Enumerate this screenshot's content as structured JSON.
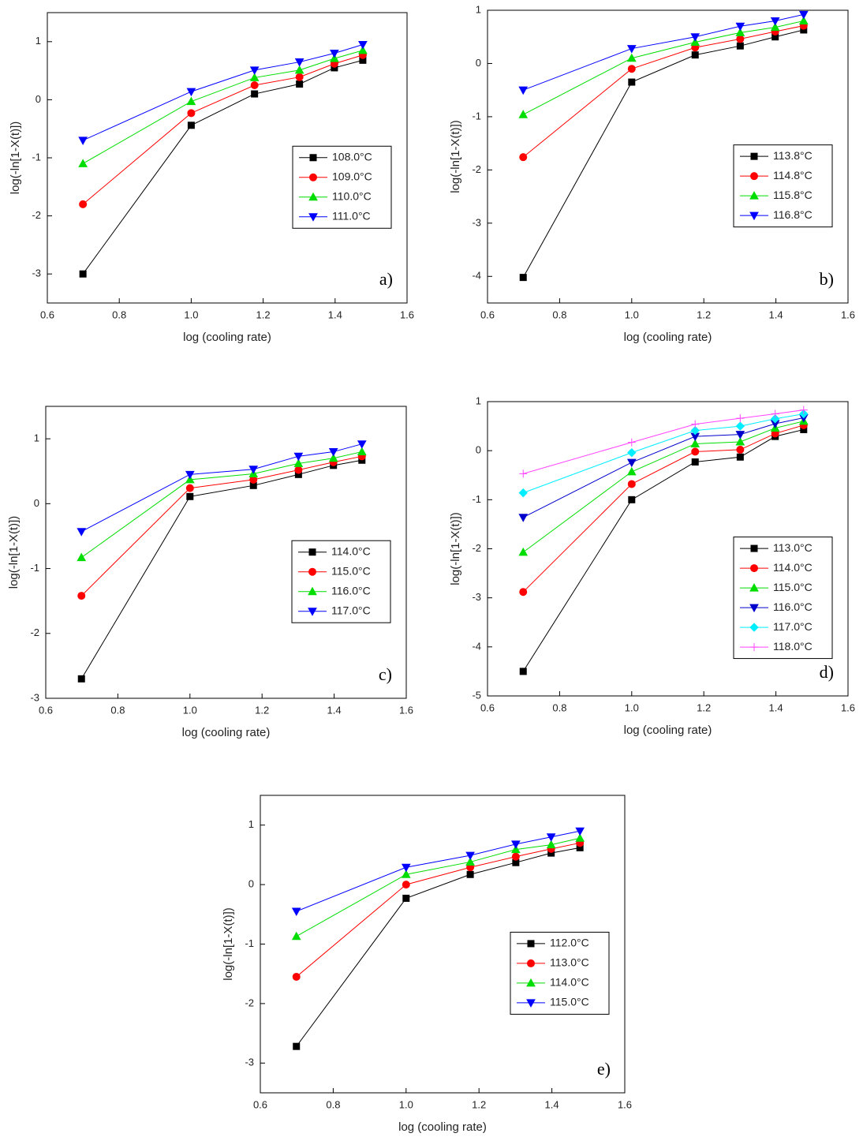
{
  "chart_data": [
    {
      "type": "line",
      "panel_label": "a)",
      "x_label": "log (cooling rate)",
      "y_label": "log(-ln[1-X(t)])",
      "x": [
        0.699,
        1.0,
        1.176,
        1.301,
        1.398,
        1.477
      ],
      "xlim": [
        0.6,
        1.6
      ],
      "xticks": [
        0.6,
        0.8,
        {
          "value": 1,
          "label": "1.0"
        },
        1.2,
        1.4,
        1.6
      ],
      "ylim": [
        -3.5,
        1.5
      ],
      "yticks": [
        -3,
        -2,
        -1,
        0,
        1
      ],
      "legend": "center right",
      "series": [
        {
          "name": "108.0°C",
          "color": "#000000",
          "marker": "square",
          "values": [
            -3.0,
            -0.44,
            0.1,
            0.27,
            0.55,
            0.68
          ]
        },
        {
          "name": "109.0°C",
          "color": "#ff0000",
          "marker": "circle",
          "values": [
            -1.8,
            -0.23,
            0.25,
            0.39,
            0.62,
            0.77
          ]
        },
        {
          "name": "110.0°C",
          "color": "#00dd00",
          "marker": "triangle-up",
          "values": [
            -1.1,
            -0.03,
            0.38,
            0.51,
            0.71,
            0.85
          ]
        },
        {
          "name": "111.0°C",
          "color": "#0000ff",
          "marker": "triangle-down",
          "values": [
            -0.7,
            0.14,
            0.51,
            0.65,
            0.8,
            0.95
          ]
        }
      ]
    },
    {
      "type": "line",
      "panel_label": "b)",
      "x_label": "log (cooling rate)",
      "y_label": "log(-ln[1-X(t)])",
      "x": [
        0.699,
        1.0,
        1.176,
        1.301,
        1.398,
        1.477
      ],
      "xlim": [
        0.6,
        1.6
      ],
      "xticks": [
        0.6,
        0.8,
        {
          "value": 1,
          "label": "1.0"
        },
        1.2,
        1.4,
        1.6
      ],
      "ylim": [
        -4.5,
        1
      ],
      "yticks": [
        -4,
        -3,
        -2,
        -1,
        0,
        1
      ],
      "legend": "center right",
      "series": [
        {
          "name": "113.8°C",
          "color": "#000000",
          "marker": "square",
          "values": [
            -4.02,
            -0.35,
            0.16,
            0.33,
            0.5,
            0.63
          ]
        },
        {
          "name": "114.8°C",
          "color": "#ff0000",
          "marker": "circle",
          "values": [
            -1.76,
            -0.1,
            0.3,
            0.46,
            0.6,
            0.71
          ]
        },
        {
          "name": "115.8°C",
          "color": "#00dd00",
          "marker": "triangle-up",
          "values": [
            -0.96,
            0.1,
            0.4,
            0.58,
            0.68,
            0.8
          ]
        },
        {
          "name": "116.8°C",
          "color": "#0000ff",
          "marker": "triangle-down",
          "values": [
            -0.5,
            0.28,
            0.5,
            0.7,
            0.8,
            0.92
          ]
        }
      ]
    },
    {
      "type": "line",
      "panel_label": "c)",
      "x_label": "log (cooling rate)",
      "y_label": "log(-ln[1-X(t)])",
      "x": [
        0.699,
        1.0,
        1.176,
        1.301,
        1.398,
        1.477
      ],
      "xlim": [
        0.6,
        1.6
      ],
      "xticks": [
        0.6,
        0.8,
        {
          "value": 1,
          "label": "1.0"
        },
        1.2,
        1.4,
        1.6
      ],
      "ylim": [
        -3,
        1.5
      ],
      "yticks": [
        -3,
        -2,
        -1,
        0,
        1
      ],
      "legend": "center right",
      "series": [
        {
          "name": "114.0°C",
          "color": "#000000",
          "marker": "square",
          "values": [
            -2.7,
            0.11,
            0.28,
            0.45,
            0.59,
            0.67
          ]
        },
        {
          "name": "115.0°C",
          "color": "#ff0000",
          "marker": "circle",
          "values": [
            -1.42,
            0.24,
            0.37,
            0.52,
            0.64,
            0.73
          ]
        },
        {
          "name": "116.0°C",
          "color": "#00dd00",
          "marker": "triangle-up",
          "values": [
            -0.83,
            0.37,
            0.46,
            0.62,
            0.7,
            0.8
          ]
        },
        {
          "name": "117.0°C",
          "color": "#0000ff",
          "marker": "triangle-down",
          "values": [
            -0.43,
            0.45,
            0.53,
            0.73,
            0.8,
            0.92
          ]
        }
      ]
    },
    {
      "type": "line",
      "panel_label": "d)",
      "x_label": "log (cooling rate)",
      "y_label": "log(-ln[1-X(t)])",
      "x": [
        0.699,
        1.0,
        1.176,
        1.301,
        1.398,
        1.477
      ],
      "xlim": [
        0.6,
        1.6
      ],
      "xticks": [
        0.6,
        0.8,
        {
          "value": 1,
          "label": "1.0"
        },
        1.2,
        1.4,
        1.6
      ],
      "ylim": [
        -5,
        1
      ],
      "yticks": [
        -5,
        -4,
        -3,
        -2,
        -1,
        0,
        1
      ],
      "legend": "center right",
      "series": [
        {
          "name": "113.0°C",
          "color": "#000000",
          "marker": "square",
          "values": [
            -4.5,
            -1.0,
            -0.23,
            -0.13,
            0.29,
            0.43
          ]
        },
        {
          "name": "114.0°C",
          "color": "#ff0000",
          "marker": "circle",
          "values": [
            -2.88,
            -0.68,
            -0.02,
            0.02,
            0.35,
            0.52
          ]
        },
        {
          "name": "115.0°C",
          "color": "#00dd00",
          "marker": "triangle-up",
          "values": [
            -2.07,
            -0.43,
            0.14,
            0.18,
            0.46,
            0.6
          ]
        },
        {
          "name": "116.0°C",
          "color": "#0000cc",
          "marker": "triangle-down",
          "values": [
            -1.36,
            -0.24,
            0.29,
            0.33,
            0.55,
            0.67
          ]
        },
        {
          "name": "117.0°C",
          "color": "#00eeff",
          "marker": "diamond",
          "values": [
            -0.86,
            -0.04,
            0.41,
            0.5,
            0.65,
            0.75
          ]
        },
        {
          "name": "118.0°C",
          "color": "#ff44ff",
          "marker": "plus",
          "values": [
            -0.47,
            0.17,
            0.54,
            0.66,
            0.75,
            0.83
          ]
        }
      ]
    },
    {
      "type": "line",
      "panel_label": "e)",
      "x_label": "log (cooling rate)",
      "y_label": "log(-ln[1-X(t)])",
      "x": [
        0.699,
        1.0,
        1.176,
        1.301,
        1.398,
        1.477
      ],
      "xlim": [
        0.6,
        1.6
      ],
      "xticks": [
        0.6,
        0.8,
        {
          "value": 1,
          "label": "1.0"
        },
        1.2,
        1.4,
        1.6
      ],
      "ylim": [
        -3.5,
        1.5
      ],
      "yticks": [
        -3,
        -2,
        -1,
        0,
        1
      ],
      "legend": "center right",
      "series": [
        {
          "name": "112.0°C",
          "color": "#000000",
          "marker": "square",
          "values": [
            -2.72,
            -0.23,
            0.17,
            0.37,
            0.53,
            0.62
          ]
        },
        {
          "name": "113.0°C",
          "color": "#ff0000",
          "marker": "circle",
          "values": [
            -1.55,
            0.0,
            0.29,
            0.47,
            0.6,
            0.7
          ]
        },
        {
          "name": "114.0°C",
          "color": "#00dd00",
          "marker": "triangle-up",
          "values": [
            -0.87,
            0.17,
            0.38,
            0.59,
            0.67,
            0.78
          ]
        },
        {
          "name": "115.0°C",
          "color": "#0000ff",
          "marker": "triangle-down",
          "values": [
            -0.45,
            0.29,
            0.49,
            0.68,
            0.8,
            0.9
          ]
        }
      ]
    }
  ]
}
